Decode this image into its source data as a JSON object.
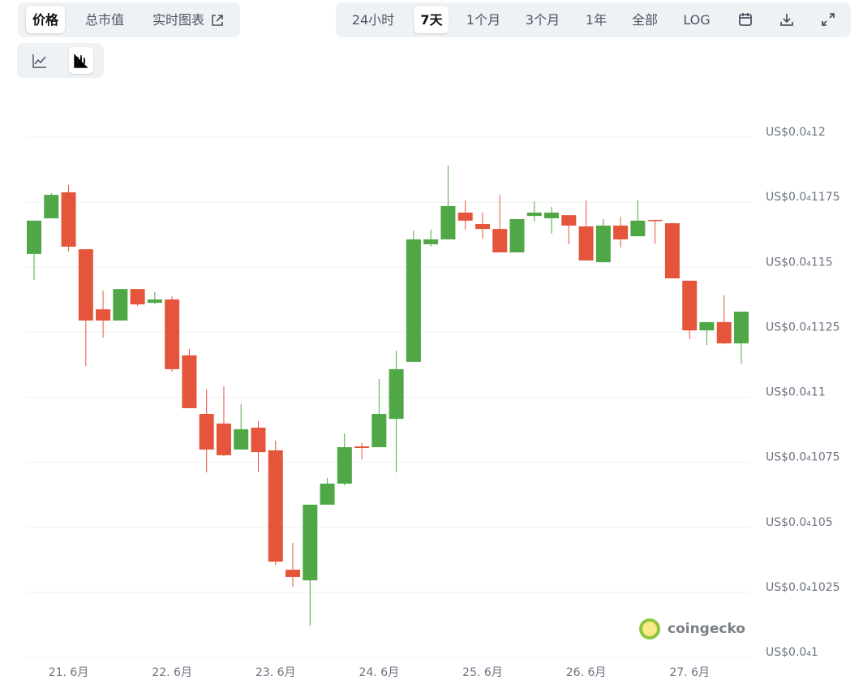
{
  "ui": {
    "value_tabs": [
      "价格",
      "总市值",
      "实时图表"
    ],
    "range_tabs": [
      "24小时",
      "7天",
      "1个月",
      "3个月",
      "1年",
      "全部",
      "LOG"
    ],
    "watermark": "coingecko"
  },
  "chart_data": {
    "type": "candlestick",
    "categories": [
      null,
      null,
      "21. 6月",
      null,
      null,
      null,
      null,
      null,
      "22. 6月",
      null,
      null,
      null,
      null,
      null,
      "23. 6月",
      null,
      null,
      null,
      null,
      null,
      "24. 6月",
      null,
      null,
      null,
      null,
      null,
      "25. 6月",
      null,
      null,
      null,
      null,
      null,
      "26. 6月",
      null,
      null,
      null,
      null,
      null,
      "27. 6月",
      null,
      null,
      null
    ],
    "open": [
      1.1551e-05,
      1.1688e-05,
      1.1788e-05,
      1.1569e-05,
      1.1338e-05,
      1.1295e-05,
      1.1416e-05,
      1.1363e-05,
      1.1376e-05,
      1.1161e-05,
      1.0936e-05,
      1.0899e-05,
      1.0799e-05,
      1.0883e-05,
      1.0796e-05,
      1.0337e-05,
      1.0296e-05,
      1.0587e-05,
      1.0668e-05,
      1.0811e-05,
      1.0808e-05,
      1.0917e-05,
      1.1136e-05,
      1.1588e-05,
      1.1607e-05,
      1.171e-05,
      1.1666e-05,
      1.1647e-05,
      1.1557e-05,
      1.1697e-05,
      1.1688e-05,
      1.17e-05,
      1.1657e-05,
      1.1519e-05,
      1.166e-05,
      1.1619e-05,
      1.1682e-05,
      1.1669e-05,
      1.1448e-05,
      1.1257e-05,
      1.1289e-05,
      1.1207e-05
    ],
    "high": [
      1.1679e-05,
      1.1785e-05,
      1.1816e-05,
      1.1569e-05,
      1.141e-05,
      1.1416e-05,
      1.1416e-05,
      1.1404e-05,
      1.1388e-05,
      1.1186e-05,
      1.103e-05,
      1.1042e-05,
      1.0973e-05,
      1.0908e-05,
      1.0833e-05,
      1.044e-05,
      1.0587e-05,
      1.069e-05,
      1.0861e-05,
      1.0824e-05,
      1.107e-05,
      1.1179e-05,
      1.1641e-05,
      1.1644e-05,
      1.1891e-05,
      1.1757e-05,
      1.171e-05,
      1.1778e-05,
      1.1685e-05,
      1.1753e-05,
      1.1732e-05,
      1.17e-05,
      1.1757e-05,
      1.1685e-05,
      1.1694e-05,
      1.1757e-05,
      1.1682e-05,
      1.1669e-05,
      1.1448e-05,
      1.1289e-05,
      1.1392e-05,
      1.1329e-05
    ],
    "low": [
      1.1451e-05,
      1.1688e-05,
      1.156e-05,
      1.112e-05,
      1.1229e-05,
      1.1295e-05,
      1.1351e-05,
      1.1357e-05,
      1.1098e-05,
      1.0958e-05,
      1.0711e-05,
      1.0774e-05,
      1.0799e-05,
      1.0711e-05,
      1.0356e-05,
      1.0271e-05,
      1.0122e-05,
      1.0587e-05,
      1.0661e-05,
      1.0761e-05,
      1.0808e-05,
      1.0711e-05,
      1.1136e-05,
      1.1579e-05,
      1.1607e-05,
      1.1644e-05,
      1.161e-05,
      1.1557e-05,
      1.1557e-05,
      1.1675e-05,
      1.1629e-05,
      1.1588e-05,
      1.1526e-05,
      1.1519e-05,
      1.1576e-05,
      1.1619e-05,
      1.1591e-05,
      1.1457e-05,
      1.1223e-05,
      1.1201e-05,
      1.1204e-05,
      1.1129e-05
    ],
    "close": [
      1.1679e-05,
      1.1778e-05,
      1.1579e-05,
      1.1295e-05,
      1.1295e-05,
      1.1416e-05,
      1.1357e-05,
      1.1376e-05,
      1.1108e-05,
      1.0958e-05,
      1.0799e-05,
      1.0777e-05,
      1.0877e-05,
      1.0789e-05,
      1.0368e-05,
      1.0309e-05,
      1.0587e-05,
      1.0668e-05,
      1.0808e-05,
      1.0805e-05,
      1.0936e-05,
      1.1108e-05,
      1.1607e-05,
      1.1607e-05,
      1.1735e-05,
      1.1679e-05,
      1.1647e-05,
      1.1557e-05,
      1.1685e-05,
      1.171e-05,
      1.171e-05,
      1.166e-05,
      1.1526e-05,
      1.166e-05,
      1.1607e-05,
      1.1679e-05,
      1.1679e-05,
      1.1457e-05,
      1.1257e-05,
      1.1289e-05,
      1.1207e-05,
      1.1329e-05
    ],
    "up_color": "#4fa845",
    "down_color": "#e4553b",
    "ylim": [
      1e-05,
      1.2e-05
    ],
    "yticks": [
      {
        "value": 1e-05,
        "label": "US$0.0₄1"
      },
      {
        "value": 1.025e-05,
        "label": "US$0.0₄1025"
      },
      {
        "value": 1.05e-05,
        "label": "US$0.0₄105"
      },
      {
        "value": 1.075e-05,
        "label": "US$0.0₄1075"
      },
      {
        "value": 1.1e-05,
        "label": "US$0.0₄11"
      },
      {
        "value": 1.125e-05,
        "label": "US$0.0₄1125"
      },
      {
        "value": 1.15e-05,
        "label": "US$0.0₄115"
      },
      {
        "value": 1.175e-05,
        "label": "US$0.0₄1175"
      },
      {
        "value": 1.2e-05,
        "label": "US$0.0₄12"
      }
    ],
    "grid": true
  }
}
